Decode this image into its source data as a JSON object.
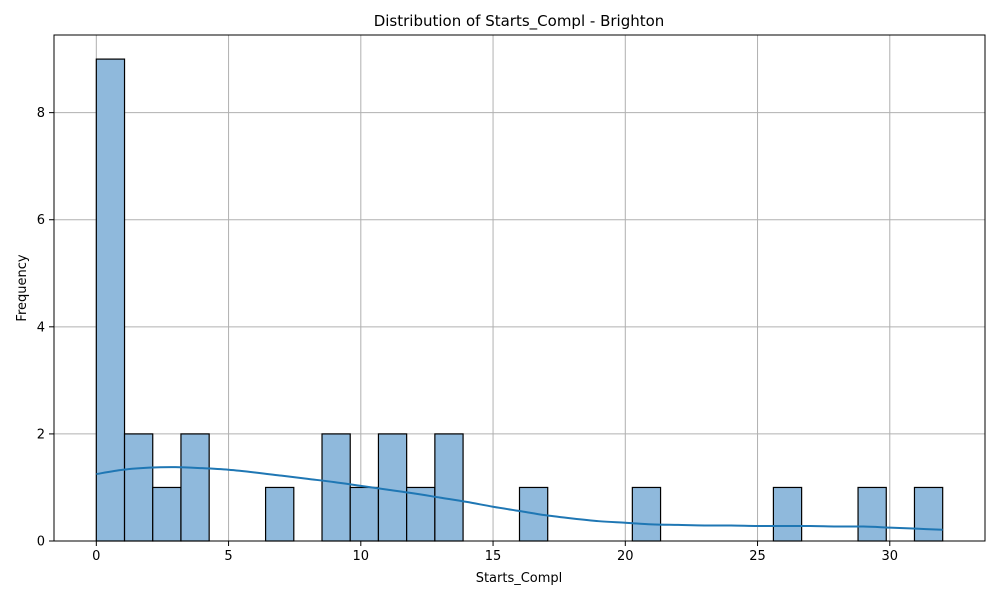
{
  "chart_data": {
    "type": "bar",
    "title": "Distribution of Starts_Compl - Brighton",
    "xlabel": "Starts_Compl",
    "ylabel": "Frequency",
    "xlim": [
      -1.6,
      33.6
    ],
    "ylim": [
      0,
      9.45
    ],
    "xticks": [
      0,
      5,
      10,
      15,
      20,
      25,
      30
    ],
    "yticks": [
      0,
      2,
      4,
      6,
      8
    ],
    "grid": true,
    "bin_width": 1.0667,
    "bins": [
      {
        "start": 0.0,
        "count": 9
      },
      {
        "start": 1.0667,
        "count": 2
      },
      {
        "start": 2.1333,
        "count": 1
      },
      {
        "start": 3.2,
        "count": 2
      },
      {
        "start": 4.2667,
        "count": 0
      },
      {
        "start": 5.3333,
        "count": 0
      },
      {
        "start": 6.4,
        "count": 1
      },
      {
        "start": 7.4667,
        "count": 0
      },
      {
        "start": 8.5333,
        "count": 2
      },
      {
        "start": 9.6,
        "count": 1
      },
      {
        "start": 10.6667,
        "count": 2
      },
      {
        "start": 11.7333,
        "count": 1
      },
      {
        "start": 12.8,
        "count": 2
      },
      {
        "start": 13.8667,
        "count": 0
      },
      {
        "start": 14.9333,
        "count": 0
      },
      {
        "start": 16.0,
        "count": 1
      },
      {
        "start": 17.0667,
        "count": 0
      },
      {
        "start": 18.1333,
        "count": 0
      },
      {
        "start": 19.2,
        "count": 0
      },
      {
        "start": 20.2667,
        "count": 1
      },
      {
        "start": 21.3333,
        "count": 0
      },
      {
        "start": 22.4,
        "count": 0
      },
      {
        "start": 23.4667,
        "count": 0
      },
      {
        "start": 24.5333,
        "count": 0
      },
      {
        "start": 25.6,
        "count": 1
      },
      {
        "start": 26.6667,
        "count": 0
      },
      {
        "start": 27.7333,
        "count": 0
      },
      {
        "start": 28.8,
        "count": 1
      },
      {
        "start": 29.8667,
        "count": 0
      },
      {
        "start": 30.9333,
        "count": 1
      }
    ],
    "kde": {
      "x": [
        0,
        1,
        2,
        3,
        4,
        5,
        6,
        7,
        8,
        9,
        10,
        11,
        12,
        13,
        14,
        15,
        16,
        17,
        18,
        19,
        20,
        21,
        22,
        23,
        24,
        25,
        26,
        27,
        28,
        29,
        30,
        31,
        32
      ],
      "y": [
        1.25,
        1.33,
        1.37,
        1.38,
        1.36,
        1.33,
        1.28,
        1.22,
        1.16,
        1.1,
        1.03,
        0.96,
        0.89,
        0.81,
        0.73,
        0.64,
        0.56,
        0.48,
        0.42,
        0.37,
        0.34,
        0.31,
        0.3,
        0.29,
        0.29,
        0.28,
        0.28,
        0.28,
        0.27,
        0.27,
        0.25,
        0.23,
        0.21
      ]
    },
    "colors": {
      "bar_fill": "#8fb9dc",
      "bar_edge": "#000000",
      "kde_line": "#1f77b4",
      "grid": "#b0b0b0"
    }
  }
}
